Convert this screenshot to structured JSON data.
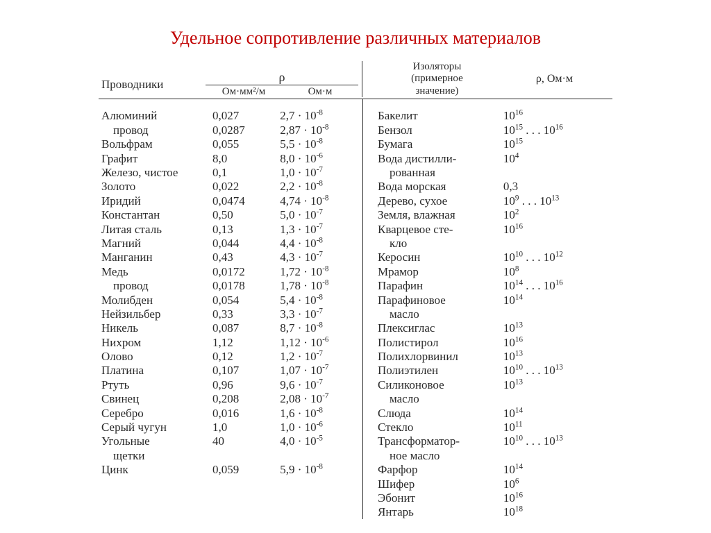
{
  "title": "Удельное сопротивление различных материалов",
  "colors": {
    "title": "#c00000",
    "text": "#2a2a2a",
    "background": "#ffffff"
  },
  "headers": {
    "conductors": "Проводники",
    "rho_symbol": "ρ",
    "unit1": "Ом·мм²/м",
    "unit2": "Ом·м",
    "insulators": "Изоляторы\n(примерное\nзначение)",
    "rho_unit_right": "ρ, Ом·м"
  },
  "conductors": [
    {
      "name": "Алюминий",
      "v1": "0,027",
      "mant": "2,7",
      "exp": "-8"
    },
    {
      "name": "    провод",
      "v1": "0,0287",
      "mant": "2,87",
      "exp": "-8"
    },
    {
      "name": "Вольфрам",
      "v1": "0,055",
      "mant": "5,5",
      "exp": "-8"
    },
    {
      "name": "Графит",
      "v1": "8,0",
      "mant": "8,0",
      "exp": "-6"
    },
    {
      "name": "Железо, чистое",
      "v1": "0,1",
      "mant": "1,0",
      "exp": "-7"
    },
    {
      "name": "Золото",
      "v1": "0,022",
      "mant": "2,2",
      "exp": "-8"
    },
    {
      "name": "Иридий",
      "v1": "0,0474",
      "mant": "4,74",
      "exp": "-8"
    },
    {
      "name": "Константан",
      "v1": "0,50",
      "mant": "5,0",
      "exp": "-7"
    },
    {
      "name": "Литая сталь",
      "v1": "0,13",
      "mant": "1,3",
      "exp": "-7"
    },
    {
      "name": "Магний",
      "v1": "0,044",
      "mant": "4,4",
      "exp": "-8"
    },
    {
      "name": "Манганин",
      "v1": "0,43",
      "mant": "4,3",
      "exp": "-7"
    },
    {
      "name": "Медь",
      "v1": "0,0172",
      "mant": "1,72",
      "exp": "-8"
    },
    {
      "name": "    провод",
      "v1": "0,0178",
      "mant": "1,78",
      "exp": "-8"
    },
    {
      "name": "Молибден",
      "v1": "0,054",
      "mant": "5,4",
      "exp": "-8"
    },
    {
      "name": "Нейзильбер",
      "v1": "0,33",
      "mant": "3,3",
      "exp": "-7"
    },
    {
      "name": "Никель",
      "v1": "0,087",
      "mant": "8,7",
      "exp": "-8"
    },
    {
      "name": "Нихром",
      "v1": "1,12",
      "mant": "1,12",
      "exp": "-6"
    },
    {
      "name": "Олово",
      "v1": "0,12",
      "mant": "1,2",
      "exp": "-7"
    },
    {
      "name": "Платина",
      "v1": "0,107",
      "mant": "1,07",
      "exp": "-7"
    },
    {
      "name": "Ртуть",
      "v1": "0,96",
      "mant": "9,6",
      "exp": "-7"
    },
    {
      "name": "Свинец",
      "v1": "0,208",
      "mant": "2,08",
      "exp": "-7"
    },
    {
      "name": "Серебро",
      "v1": "0,016",
      "mant": "1,6",
      "exp": "-8"
    },
    {
      "name": "Серый чугун",
      "v1": "1,0",
      "mant": "1,0",
      "exp": "-6"
    },
    {
      "name": "Угольные",
      "v1": "40",
      "mant": "4,0",
      "exp": "-5"
    },
    {
      "name": "    щетки",
      "v1": "",
      "mant": "",
      "exp": ""
    },
    {
      "name": "Цинк",
      "v1": "0,059",
      "mant": "5,9",
      "exp": "-8"
    }
  ],
  "insulators": [
    {
      "name": "Бакелит",
      "exp1": "16"
    },
    {
      "name": "Бензол",
      "exp1": "15",
      "exp2": "16"
    },
    {
      "name": "Бумага",
      "exp1": "15"
    },
    {
      "name": "Вода дистилли-",
      "exp1": "4"
    },
    {
      "name": "    рованная",
      "cont": true
    },
    {
      "name": "Вода морская",
      "plain": "0,3"
    },
    {
      "name": "Дерево, сухое",
      "exp1": "9",
      "exp2": "13"
    },
    {
      "name": "Земля, влажная",
      "exp1": "2"
    },
    {
      "name": "Кварцевое сте-",
      "exp1": "16"
    },
    {
      "name": "    кло",
      "cont": true
    },
    {
      "name": "Керосин",
      "exp1": "10",
      "exp2": "12"
    },
    {
      "name": "Мрамор",
      "exp1": "8"
    },
    {
      "name": "Парафин",
      "exp1": "14",
      "exp2": "16"
    },
    {
      "name": "Парафиновое",
      "exp1": "14"
    },
    {
      "name": "    масло",
      "cont": true
    },
    {
      "name": "Плексиглас",
      "exp1": "13"
    },
    {
      "name": "Полистирол",
      "exp1": "16"
    },
    {
      "name": "Полихлорвинил",
      "exp1": "13"
    },
    {
      "name": "Полиэтилен",
      "exp1": "10",
      "exp2": "13"
    },
    {
      "name": "Силиконовое",
      "exp1": "13"
    },
    {
      "name": "    масло",
      "cont": true
    },
    {
      "name": "Слюда",
      "exp1": "14"
    },
    {
      "name": "Стекло",
      "exp1": "11"
    },
    {
      "name": "Трансформатор-",
      "exp1": "10",
      "exp2": "13"
    },
    {
      "name": "    ное масло",
      "cont": true
    },
    {
      "name": "Фарфор",
      "exp1": "14"
    },
    {
      "name": "Шифер",
      "exp1": "6"
    },
    {
      "name": "Эбонит",
      "exp1": "16"
    },
    {
      "name": "Янтарь",
      "exp1": "18"
    }
  ]
}
